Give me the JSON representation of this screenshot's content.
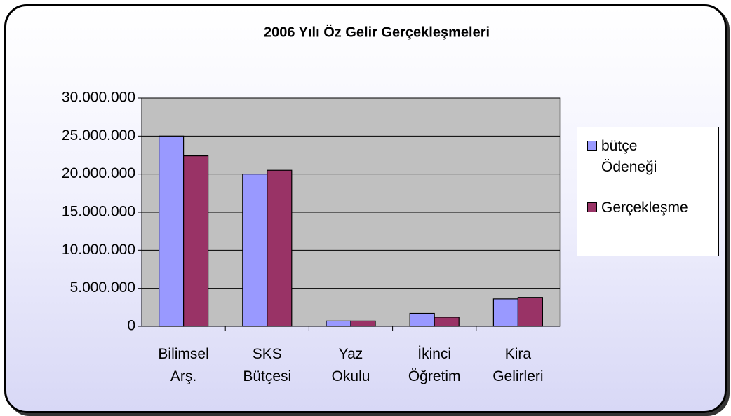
{
  "chart_data": {
    "type": "bar",
    "title": "2006 Yılı Öz Gelir Gerçekleşmeleri",
    "categories": [
      "Bilimsel Arş.",
      "SKS Bütçesi",
      "Yaz Okulu",
      "İkinci Öğretim",
      "Kira Gelirleri"
    ],
    "series": [
      {
        "name": "bütçe Ödeneği",
        "color": "#9999ff",
        "values": [
          25000000,
          20000000,
          700000,
          1700000,
          3600000
        ]
      },
      {
        "name": "Gerçekleşme",
        "color": "#993366",
        "values": [
          22400000,
          20500000,
          700000,
          1200000,
          3800000
        ]
      }
    ],
    "ylim": [
      0,
      30000000
    ],
    "yticks": [
      0,
      {
        "value": 5000000,
        "label": "5.000.000"
      },
      {
        "value": 10000000,
        "label": "10.000.000"
      },
      {
        "value": 15000000,
        "label": "15.000.000"
      },
      {
        "value": 20000000,
        "label": "20.000.000"
      },
      {
        "value": 25000000,
        "label": "25.000.000"
      },
      {
        "value": 30000000,
        "label": "30.000.000"
      }
    ],
    "grid": true,
    "legend": "right"
  }
}
